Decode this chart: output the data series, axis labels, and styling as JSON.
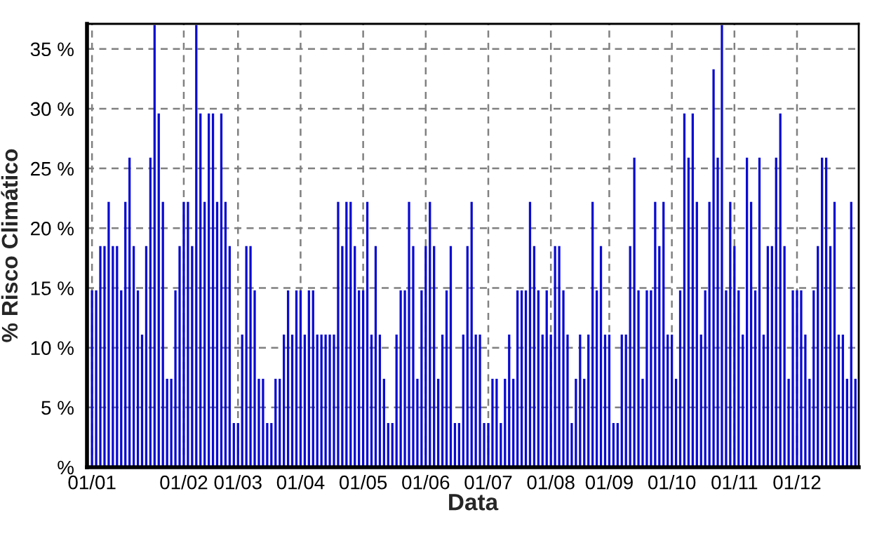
{
  "chart_data": {
    "type": "bar",
    "xlabel": "Data",
    "ylabel": "% Risco Climático",
    "categories": [
      "01/01",
      null,
      null,
      null,
      null,
      null,
      null,
      null,
      null,
      null,
      null,
      null,
      null,
      null,
      null,
      null,
      null,
      null,
      null,
      null,
      null,
      null,
      "01/02",
      null,
      null,
      null,
      null,
      null,
      null,
      null,
      null,
      null,
      null,
      null,
      null,
      "01/03",
      null,
      null,
      null,
      null,
      null,
      null,
      null,
      null,
      null,
      null,
      null,
      null,
      null,
      null,
      "01/04",
      null,
      null,
      null,
      null,
      null,
      null,
      null,
      null,
      null,
      null,
      null,
      null,
      null,
      null,
      "01/05",
      null,
      null,
      null,
      null,
      null,
      null,
      null,
      null,
      null,
      null,
      null,
      null,
      null,
      null,
      "01/06",
      null,
      null,
      null,
      null,
      null,
      null,
      null,
      null,
      null,
      null,
      null,
      null,
      null,
      null,
      "01/07",
      null,
      null,
      null,
      null,
      null,
      null,
      null,
      null,
      null,
      null,
      null,
      null,
      null,
      null,
      "01/08",
      null,
      null,
      null,
      null,
      null,
      null,
      null,
      null,
      null,
      null,
      null,
      null,
      null,
      "01/09",
      null,
      null,
      null,
      null,
      null,
      null,
      null,
      null,
      null,
      null,
      null,
      null,
      null,
      null,
      "01/10",
      null,
      null,
      null,
      null,
      null,
      null,
      null,
      null,
      null,
      null,
      null,
      null,
      null,
      null,
      "01/11",
      null,
      null,
      null,
      null,
      null,
      null,
      null,
      null,
      null,
      null,
      null,
      null,
      null,
      null,
      "01/12",
      null,
      null,
      null,
      null,
      null,
      null,
      null,
      null,
      null,
      null,
      null,
      null,
      null,
      null
    ],
    "values": [
      14.8,
      14.8,
      18.5,
      18.5,
      22.2,
      18.5,
      18.5,
      14.8,
      22.2,
      25.9,
      18.5,
      14.8,
      11.1,
      18.5,
      25.9,
      37,
      29.6,
      22.2,
      7.4,
      7.4,
      14.8,
      18.5,
      22.2,
      22.2,
      18.5,
      37,
      29.6,
      22.2,
      29.6,
      29.6,
      22.2,
      29.6,
      22.2,
      18.5,
      3.7,
      3.7,
      11.1,
      18.5,
      18.5,
      14.8,
      7.4,
      7.4,
      3.7,
      3.7,
      7.4,
      7.4,
      11.1,
      14.8,
      11.1,
      14.8,
      14.8,
      11.1,
      14.8,
      14.8,
      11.1,
      11.1,
      11.1,
      11.1,
      11.1,
      22.2,
      18.5,
      22.2,
      22.2,
      18.5,
      14.8,
      14.8,
      22.2,
      11.1,
      18.5,
      11.1,
      7.4,
      3.7,
      3.7,
      11.1,
      14.8,
      14.8,
      22.2,
      18.5,
      7.4,
      14.8,
      18.5,
      22.2,
      18.5,
      7.4,
      11.1,
      14.8,
      18.5,
      3.7,
      3.7,
      11.1,
      18.5,
      22.2,
      11.1,
      11.1,
      3.7,
      3.7,
      7.4,
      7.4,
      3.7,
      7.4,
      11.1,
      7.4,
      14.8,
      14.8,
      14.8,
      22.2,
      18.5,
      14.8,
      11.1,
      14.8,
      11.1,
      18.5,
      18.5,
      14.8,
      11.1,
      3.7,
      7.4,
      11.1,
      7.4,
      11.1,
      22.2,
      14.8,
      18.5,
      11.1,
      11.1,
      3.7,
      3.7,
      11.1,
      11.1,
      18.5,
      25.9,
      14.8,
      7.4,
      14.8,
      14.8,
      22.2,
      18.5,
      22.2,
      11.1,
      11.1,
      7.4,
      14.8,
      29.6,
      25.9,
      29.6,
      22.2,
      11.1,
      14.8,
      22.2,
      33.3,
      25.9,
      37,
      14.8,
      22.2,
      18.5,
      14.8,
      11.1,
      25.9,
      22.2,
      14.8,
      25.9,
      11.1,
      18.5,
      18.5,
      25.9,
      29.6,
      18.5,
      7.4,
      14.8,
      14.8,
      14.8,
      11.1,
      7.4,
      14.8,
      18.5,
      25.9,
      25.9,
      18.5,
      22.2,
      11.1,
      11.1,
      7.4,
      22.2,
      7.4
    ],
    "color": "#0a0ad2",
    "ylim": [
      0,
      37.1
    ],
    "yticks": [
      {
        "value": 0,
        "label": "%"
      },
      {
        "value": 5,
        "label": "5 %"
      },
      {
        "value": 10,
        "label": "10 %"
      },
      {
        "value": 15,
        "label": "15 %"
      },
      {
        "value": 20,
        "label": "20 %"
      },
      {
        "value": 25,
        "label": "25 %"
      },
      {
        "value": 30,
        "label": "30 %"
      },
      {
        "value": 35,
        "label": "35 %"
      }
    ],
    "grid": true
  }
}
